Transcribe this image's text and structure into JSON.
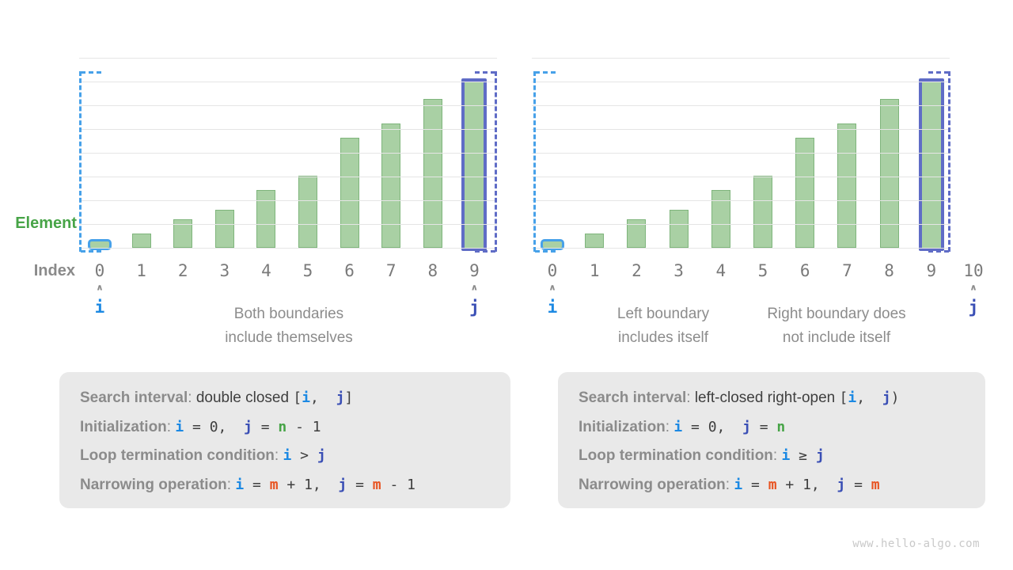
{
  "colors": {
    "i_blue": "#1c89e3",
    "j_indigo": "#3a4fb5",
    "n_green": "#47a447",
    "m_orange": "#e85321",
    "hl_blue": "#47a1e9",
    "hl_indigo": "#5f6cc6",
    "bar_fill": "#a9d0a4",
    "bar_border": "#7fb57c",
    "grid": "#e5e5e5"
  },
  "labels": {
    "element": "Element",
    "index": "Index"
  },
  "chart_data": [
    {
      "type": "bar",
      "categories": [
        "0",
        "1",
        "2",
        "3",
        "4",
        "5",
        "6",
        "7",
        "8",
        "9"
      ],
      "values": [
        1,
        3,
        6,
        8,
        12,
        15,
        23,
        26,
        31,
        35
      ],
      "ylabel": "Element",
      "xlabel": "Index",
      "grid": true,
      "highlight": {
        "i_bar_index": 0,
        "j_bar_index": 9
      },
      "pointers": [
        {
          "label": "i",
          "index": 0
        },
        {
          "label": "j",
          "index": 9
        }
      ],
      "annotation": "Both boundaries\ninclude themselves"
    },
    {
      "type": "bar",
      "categories": [
        "0",
        "1",
        "2",
        "3",
        "4",
        "5",
        "6",
        "7",
        "8",
        "9",
        "10"
      ],
      "values": [
        1,
        3,
        6,
        8,
        12,
        15,
        23,
        26,
        31,
        35
      ],
      "grid": true,
      "highlight": {
        "i_bar_index": 0,
        "j_bar_index": 9
      },
      "pointers": [
        {
          "label": "i",
          "index": 0
        },
        {
          "label": "j",
          "index": 10
        }
      ],
      "annotations": [
        "Left boundary\nincludes itself",
        "Right boundary does\nnot include itself"
      ]
    }
  ],
  "boxes": [
    {
      "lines": [
        [
          {
            "c": "lbl",
            "t": "Search interval"
          },
          {
            "c": "lblc",
            "t": ": "
          },
          {
            "c": "txt",
            "t": "double closed "
          },
          {
            "c": "code",
            "t": "["
          },
          {
            "c": "i",
            "t": "i"
          },
          {
            "c": "code",
            "t": ",  "
          },
          {
            "c": "j",
            "t": "j"
          },
          {
            "c": "code",
            "t": "]"
          }
        ],
        [
          {
            "c": "lbl",
            "t": "Initialization"
          },
          {
            "c": "lblc",
            "t": ": "
          },
          {
            "c": "i",
            "t": "i"
          },
          {
            "c": "code",
            "t": " = 0,  "
          },
          {
            "c": "j",
            "t": "j"
          },
          {
            "c": "code",
            "t": " = "
          },
          {
            "c": "n",
            "t": "n"
          },
          {
            "c": "code",
            "t": " - 1"
          }
        ],
        [
          {
            "c": "lbl",
            "t": "Loop termination condition"
          },
          {
            "c": "lblc",
            "t": ": "
          },
          {
            "c": "i",
            "t": "i"
          },
          {
            "c": "code",
            "t": " > "
          },
          {
            "c": "j",
            "t": "j"
          }
        ],
        [
          {
            "c": "lbl",
            "t": "Narrowing operation"
          },
          {
            "c": "lblc",
            "t": ": "
          },
          {
            "c": "i",
            "t": "i"
          },
          {
            "c": "code",
            "t": " = "
          },
          {
            "c": "m",
            "t": "m"
          },
          {
            "c": "code",
            "t": " + 1,  "
          },
          {
            "c": "j",
            "t": "j"
          },
          {
            "c": "code",
            "t": " = "
          },
          {
            "c": "m",
            "t": "m"
          },
          {
            "c": "code",
            "t": " - 1"
          }
        ]
      ]
    },
    {
      "lines": [
        [
          {
            "c": "lbl",
            "t": "Search interval"
          },
          {
            "c": "lblc",
            "t": ": "
          },
          {
            "c": "txt",
            "t": "left-closed right-open "
          },
          {
            "c": "code",
            "t": "["
          },
          {
            "c": "i",
            "t": "i"
          },
          {
            "c": "code",
            "t": ",  "
          },
          {
            "c": "j",
            "t": "j"
          },
          {
            "c": "code",
            "t": ")"
          }
        ],
        [
          {
            "c": "lbl",
            "t": "Initialization"
          },
          {
            "c": "lblc",
            "t": ": "
          },
          {
            "c": "i",
            "t": "i"
          },
          {
            "c": "code",
            "t": " = 0,  "
          },
          {
            "c": "j",
            "t": "j"
          },
          {
            "c": "code",
            "t": " = "
          },
          {
            "c": "n",
            "t": "n"
          }
        ],
        [
          {
            "c": "lbl",
            "t": "Loop termination condition"
          },
          {
            "c": "lblc",
            "t": ": "
          },
          {
            "c": "i",
            "t": "i"
          },
          {
            "c": "code",
            "t": " ≥ "
          },
          {
            "c": "j",
            "t": "j"
          }
        ],
        [
          {
            "c": "lbl",
            "t": "Narrowing operation"
          },
          {
            "c": "lblc",
            "t": ": "
          },
          {
            "c": "i",
            "t": "i"
          },
          {
            "c": "code",
            "t": " = "
          },
          {
            "c": "m",
            "t": "m"
          },
          {
            "c": "code",
            "t": " + 1,  "
          },
          {
            "c": "j",
            "t": "j"
          },
          {
            "c": "code",
            "t": " = "
          },
          {
            "c": "m",
            "t": "m"
          }
        ]
      ]
    }
  ],
  "footer": "www.hello-algo.com"
}
